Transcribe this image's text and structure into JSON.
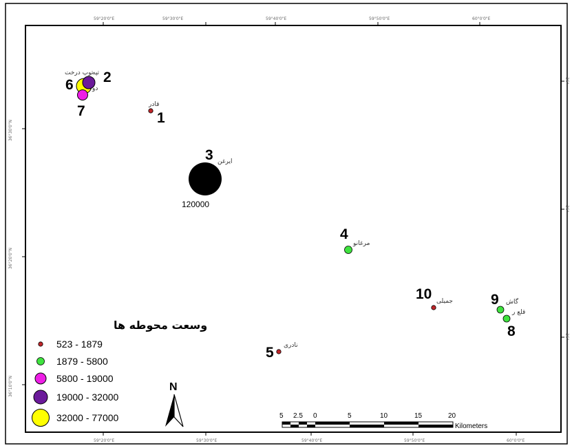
{
  "map": {
    "legend": {
      "title": "وسعت محوطه ها",
      "classes": [
        {
          "label": "523 - 1879",
          "color": "#c0262a"
        },
        {
          "label": "1879 - 5800",
          "color": "#3fe33f"
        },
        {
          "label": "5800 - 19000",
          "color": "#ee1ee6"
        },
        {
          "label": "19000 - 32000",
          "color": "#6b1a9a"
        },
        {
          "label": "32000 - 77000",
          "color": "#ffff00"
        }
      ]
    },
    "sites": [
      {
        "num": "1",
        "name": "قادر",
        "cls": 0
      },
      {
        "num": "2",
        "name": "توپ درخت",
        "cls": 3
      },
      {
        "num": "3",
        "name": "ایرغن",
        "cls": -1,
        "value_label": "120000"
      },
      {
        "num": "4",
        "name": "مرغانو",
        "cls": 1
      },
      {
        "num": "5",
        "name": "نادری",
        "cls": 0
      },
      {
        "num": "6",
        "name": "تپه",
        "cls": 4
      },
      {
        "num": "7",
        "name": "دو",
        "cls": 2
      },
      {
        "num": "8",
        "name": "قلع ر",
        "cls": 1
      },
      {
        "num": "9",
        "name": "گاش",
        "cls": 1
      },
      {
        "num": "10",
        "name": "جمیلی",
        "cls": 0
      }
    ],
    "ticks_top": [
      "59°20'0\"E",
      "59°30'0\"E",
      "59°40'0\"E",
      "59°50'0\"E",
      "60°0'0\"E"
    ],
    "ticks_bottom": [
      "59°20'0\"E",
      "59°30'0\"E",
      "59°40'0\"E",
      "59°50'0\"E",
      "60°0'0\"E"
    ],
    "ticks_left": [
      "36°30'0\"N",
      "36°20'0\"N",
      "36°10'0\"N"
    ],
    "ticks_right": [
      "36°",
      "36°",
      "36°"
    ],
    "north_label": "N",
    "scale_bar": {
      "labels": [
        "5",
        "2.5",
        "0",
        "5",
        "10",
        "15",
        "20"
      ],
      "unit": "Kilometers"
    }
  }
}
